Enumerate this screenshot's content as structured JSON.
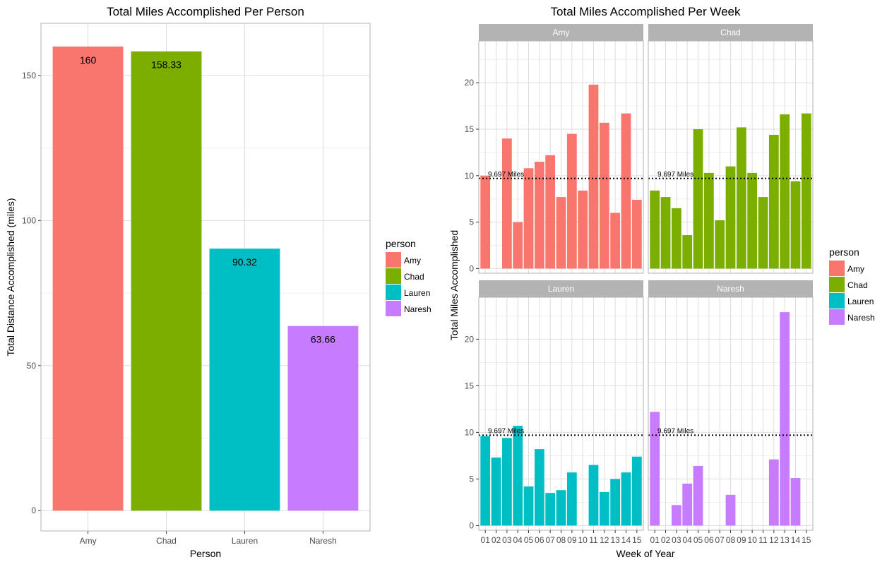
{
  "colors": {
    "Amy": "#F8766D",
    "Chad": "#7CAE00",
    "Lauren": "#00BFC4",
    "Naresh": "#C77CFF",
    "grid": "#dedede",
    "panel_border": "#b3b3b3",
    "strip": "#b3b3b3"
  },
  "chart_data": [
    {
      "type": "bar",
      "title": "Total Miles Accomplished Per Person",
      "xlabel": "Person",
      "ylabel": "Total Distance Accomplished (miles)",
      "categories": [
        "Amy",
        "Chad",
        "Lauren",
        "Naresh"
      ],
      "values": [
        160,
        158.33,
        90.32,
        63.66
      ],
      "value_labels": [
        "160",
        "158.33",
        "90.32",
        "63.66"
      ],
      "ylim": [
        -7,
        168
      ],
      "yticks": [
        0,
        50,
        100,
        150
      ],
      "ytick_labels": [
        "0",
        "50",
        "100",
        "150"
      ],
      "grid": true,
      "legend": {
        "title": "person",
        "placement": "right",
        "entries": [
          "Amy",
          "Chad",
          "Lauren",
          "Naresh"
        ]
      }
    },
    {
      "type": "bar",
      "title": "Total Miles Accomplished Per Week",
      "xlabel": "Week of Year",
      "ylabel": "Total Miles Accomplished",
      "faceted": true,
      "weeks": [
        "01",
        "02",
        "03",
        "04",
        "05",
        "06",
        "07",
        "08",
        "09",
        "10",
        "11",
        "12",
        "13",
        "14",
        "15"
      ],
      "ylim": [
        -0.5,
        24.5
      ],
      "yticks": [
        0,
        5,
        10,
        15,
        20
      ],
      "ytick_labels": [
        "0",
        "5",
        "10",
        "15",
        "20"
      ],
      "reference_line": {
        "value": 9.697,
        "label": "9.697 Miles"
      },
      "grid": true,
      "facets": [
        {
          "name": "Amy",
          "values": [
            10,
            null,
            14,
            5,
            10.8,
            11.5,
            12.2,
            7.7,
            14.5,
            8.4,
            19.8,
            15.7,
            6,
            16.7,
            7.4
          ]
        },
        {
          "name": "Chad",
          "values": [
            8.4,
            7.7,
            6.5,
            3.6,
            15,
            10.3,
            5.2,
            11,
            15.2,
            10.3,
            7.7,
            14.4,
            16.6,
            9.4,
            16.7
          ]
        },
        {
          "name": "Lauren",
          "values": [
            9.6,
            7.3,
            9.4,
            10.7,
            4.2,
            8.2,
            3.5,
            3.8,
            5.7,
            null,
            6.5,
            3.6,
            5,
            5.7,
            7.4
          ]
        },
        {
          "name": "Naresh",
          "values": [
            12.2,
            null,
            2.2,
            4.5,
            6.4,
            null,
            null,
            3.3,
            null,
            null,
            null,
            7.1,
            22.9,
            5.1,
            null
          ]
        }
      ],
      "legend": {
        "title": "person",
        "placement": "right",
        "entries": [
          "Amy",
          "Chad",
          "Lauren",
          "Naresh"
        ]
      }
    }
  ]
}
